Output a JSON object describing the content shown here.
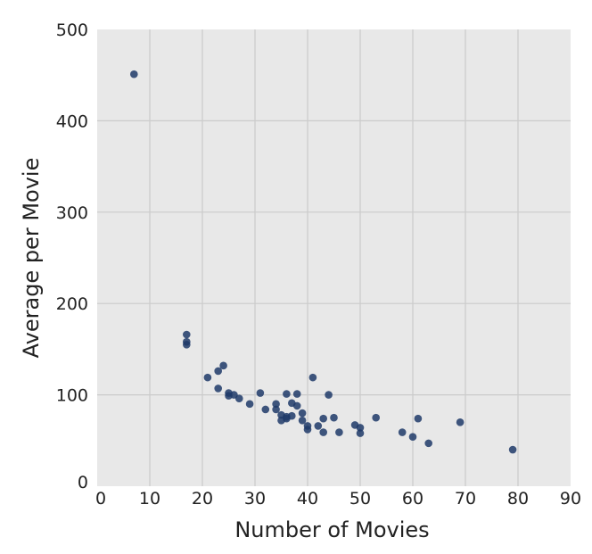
{
  "chart_data": {
    "type": "scatter",
    "xlabel": "Number of Movies",
    "ylabel": "Average per Movie",
    "xlim": [
      0,
      90
    ],
    "ylim": [
      0,
      500
    ],
    "xticks": [
      "0",
      "10",
      "20",
      "30",
      "40",
      "50",
      "60",
      "70",
      "80",
      "90"
    ],
    "yticks": [
      "0",
      "100",
      "200",
      "300",
      "400",
      "500"
    ],
    "grid": true,
    "colors": {
      "background": "#e8e8e8",
      "grid": "#cbcbcb",
      "marker": "#1f3a68"
    },
    "points": [
      [
        7,
        451
      ],
      [
        17,
        166
      ],
      [
        17,
        158
      ],
      [
        17,
        155
      ],
      [
        21,
        119
      ],
      [
        23,
        107
      ],
      [
        23,
        126
      ],
      [
        24,
        132
      ],
      [
        25,
        99
      ],
      [
        25,
        102
      ],
      [
        26,
        100
      ],
      [
        27,
        96
      ],
      [
        29,
        90
      ],
      [
        31,
        102
      ],
      [
        32,
        84
      ],
      [
        34,
        90
      ],
      [
        34,
        84
      ],
      [
        35,
        78
      ],
      [
        35,
        72
      ],
      [
        36,
        101
      ],
      [
        36,
        76
      ],
      [
        36,
        74
      ],
      [
        37,
        91
      ],
      [
        37,
        77
      ],
      [
        38,
        101
      ],
      [
        38,
        88
      ],
      [
        39,
        80
      ],
      [
        39,
        72
      ],
      [
        40,
        66
      ],
      [
        40,
        62
      ],
      [
        41,
        119
      ],
      [
        42,
        66
      ],
      [
        43,
        74
      ],
      [
        43,
        59
      ],
      [
        44,
        100
      ],
      [
        45,
        75
      ],
      [
        46,
        59
      ],
      [
        49,
        67
      ],
      [
        50,
        64
      ],
      [
        50,
        58
      ],
      [
        53,
        75
      ],
      [
        58,
        59
      ],
      [
        60,
        54
      ],
      [
        61,
        74
      ],
      [
        63,
        47
      ],
      [
        69,
        70
      ],
      [
        79,
        40
      ]
    ]
  }
}
